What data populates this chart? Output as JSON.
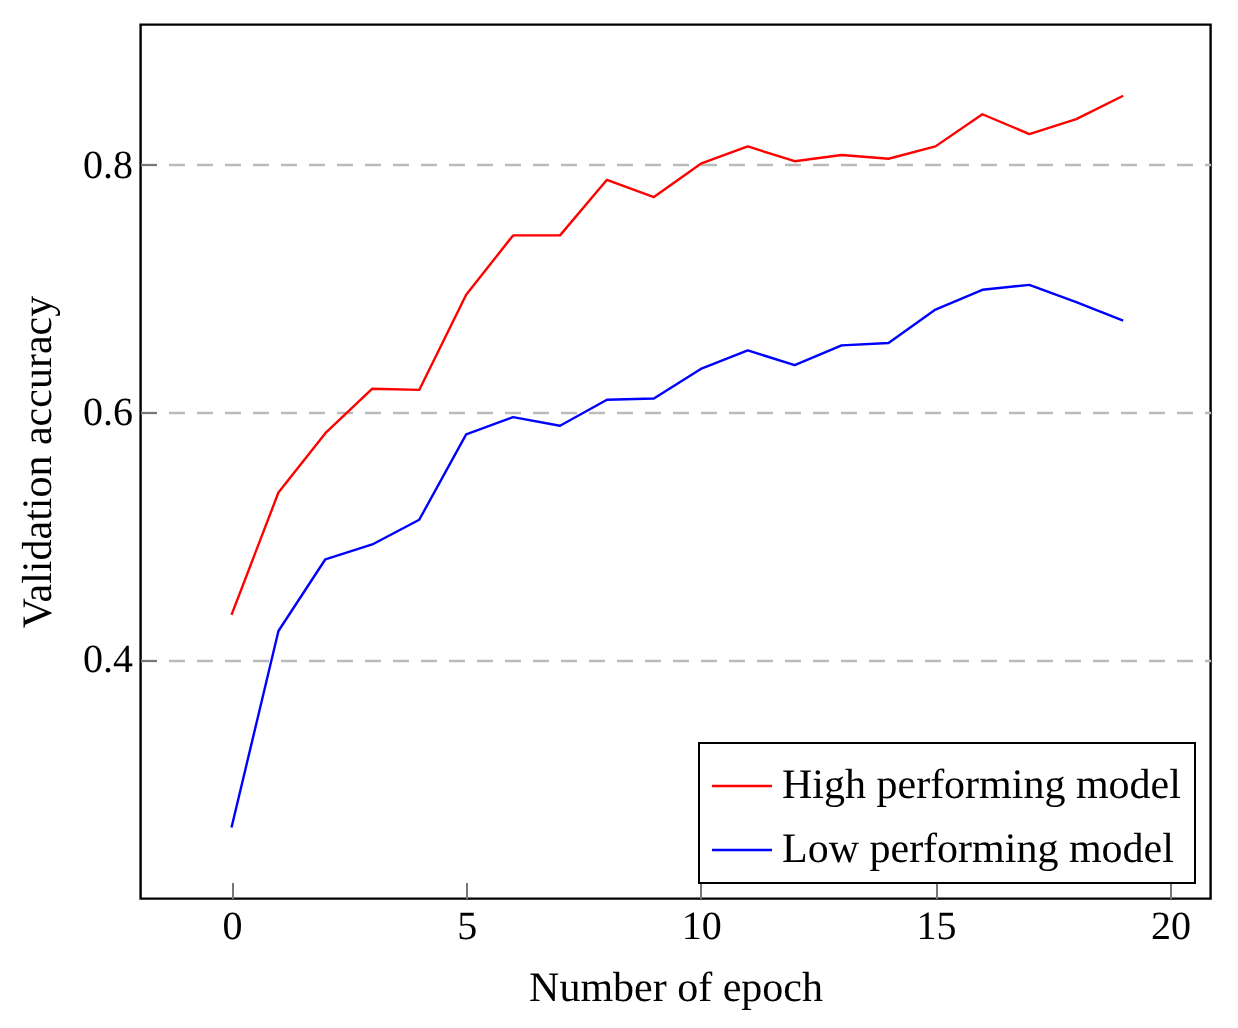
{
  "chart_data": {
    "type": "line",
    "xlabel": "Number of epoch",
    "ylabel": "Validation accuracy",
    "x": [
      0,
      1,
      2,
      3,
      4,
      5,
      6,
      7,
      8,
      9,
      10,
      11,
      12,
      13,
      14,
      15,
      16,
      17,
      18,
      19
    ],
    "series": [
      {
        "name": "High performing model",
        "color": "#ff0000",
        "values": [
          0.436,
          0.535,
          0.583,
          0.619,
          0.618,
          0.695,
          0.743,
          0.743,
          0.788,
          0.774,
          0.801,
          0.815,
          0.803,
          0.808,
          0.805,
          0.815,
          0.841,
          0.825,
          0.837,
          0.856
        ]
      },
      {
        "name": "Low performing model",
        "color": "#0000ff",
        "values": [
          0.264,
          0.423,
          0.481,
          0.493,
          0.513,
          0.582,
          0.596,
          0.589,
          0.61,
          0.611,
          0.635,
          0.65,
          0.638,
          0.654,
          0.656,
          0.683,
          0.699,
          0.703,
          0.689,
          0.674
        ]
      }
    ],
    "xlim": [
      -1.95,
      20.85
    ],
    "ylim": [
      0.207,
      0.914
    ],
    "xticks": [
      0,
      5,
      10,
      15,
      20
    ],
    "yticks": [
      0.4,
      0.6,
      0.8
    ],
    "grid": "y",
    "legend": "bottom right",
    "line_style": "solid",
    "marker": "none"
  }
}
